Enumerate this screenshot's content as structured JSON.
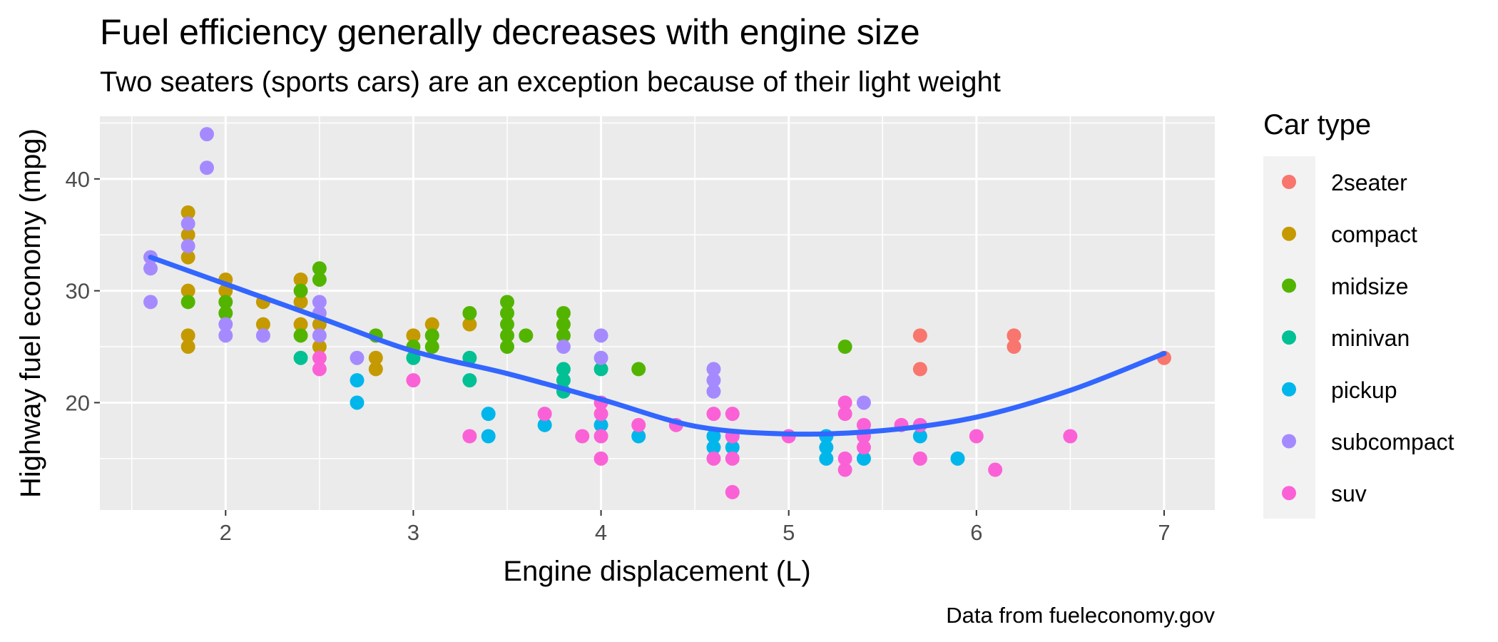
{
  "chart_data": {
    "type": "scatter",
    "title": "Fuel efficiency generally decreases with engine size",
    "subtitle": "Two seaters (sports cars) are an exception because of their light weight",
    "xlabel": "Engine displacement (L)",
    "ylabel": "Highway fuel economy (mpg)",
    "caption": "Data from fueleconomy.gov",
    "xlim": [
      1.33,
      7.27
    ],
    "ylim": [
      10.4,
      45.6
    ],
    "x_ticks": [
      "2",
      "3",
      "4",
      "5",
      "6",
      "7"
    ],
    "y_ticks": [
      "20",
      "30",
      "40"
    ],
    "x_tick_values": [
      2,
      3,
      4,
      5,
      6,
      7
    ],
    "y_tick_values": [
      20,
      30,
      40
    ],
    "grid": true,
    "legend_title": "Car type",
    "legend_position": "right",
    "series": [
      {
        "name": "2seater",
        "color": "#F8766D",
        "points": [
          [
            5.7,
            26
          ],
          [
            5.7,
            23
          ],
          [
            6.2,
            26
          ],
          [
            6.2,
            25
          ],
          [
            7.0,
            24
          ]
        ]
      },
      {
        "name": "compact",
        "color": "#C49A00",
        "points": [
          [
            1.8,
            37
          ],
          [
            1.8,
            35
          ],
          [
            1.8,
            33
          ],
          [
            1.8,
            30
          ],
          [
            1.8,
            26
          ],
          [
            1.8,
            25
          ],
          [
            2.0,
            31
          ],
          [
            2.0,
            30
          ],
          [
            2.2,
            29
          ],
          [
            2.2,
            27
          ],
          [
            2.4,
            31
          ],
          [
            2.4,
            29
          ],
          [
            2.4,
            27
          ],
          [
            2.5,
            27
          ],
          [
            2.5,
            25
          ],
          [
            2.8,
            24
          ],
          [
            2.8,
            23
          ],
          [
            3.0,
            26
          ],
          [
            3.1,
            27
          ],
          [
            3.3,
            27
          ]
        ]
      },
      {
        "name": "midsize",
        "color": "#53B400",
        "points": [
          [
            1.8,
            29
          ],
          [
            2.0,
            29
          ],
          [
            2.0,
            28
          ],
          [
            2.4,
            30
          ],
          [
            2.4,
            26
          ],
          [
            2.5,
            32
          ],
          [
            2.5,
            31
          ],
          [
            2.8,
            26
          ],
          [
            3.0,
            25
          ],
          [
            3.1,
            26
          ],
          [
            3.1,
            25
          ],
          [
            3.3,
            28
          ],
          [
            3.5,
            29
          ],
          [
            3.5,
            28
          ],
          [
            3.5,
            27
          ],
          [
            3.5,
            26
          ],
          [
            3.5,
            25
          ],
          [
            3.6,
            26
          ],
          [
            3.8,
            28
          ],
          [
            3.8,
            27
          ],
          [
            3.8,
            26
          ],
          [
            4.2,
            23
          ],
          [
            5.3,
            25
          ]
        ]
      },
      {
        "name": "minivan",
        "color": "#00C094",
        "points": [
          [
            2.4,
            24
          ],
          [
            3.0,
            24
          ],
          [
            3.3,
            24
          ],
          [
            3.3,
            22
          ],
          [
            3.8,
            23
          ],
          [
            3.8,
            22
          ],
          [
            3.8,
            21
          ],
          [
            4.0,
            23
          ]
        ]
      },
      {
        "name": "pickup",
        "color": "#00B6EB",
        "points": [
          [
            2.7,
            22
          ],
          [
            2.7,
            20
          ],
          [
            3.4,
            19
          ],
          [
            3.4,
            17
          ],
          [
            3.7,
            18
          ],
          [
            4.0,
            18
          ],
          [
            4.2,
            17
          ],
          [
            4.6,
            17
          ],
          [
            4.6,
            16
          ],
          [
            4.7,
            17
          ],
          [
            4.7,
            16
          ],
          [
            5.2,
            17
          ],
          [
            5.2,
            16
          ],
          [
            5.2,
            15
          ],
          [
            5.4,
            15
          ],
          [
            5.7,
            17
          ],
          [
            5.9,
            15
          ]
        ]
      },
      {
        "name": "subcompact",
        "color": "#A58AFF",
        "points": [
          [
            1.6,
            33
          ],
          [
            1.6,
            32
          ],
          [
            1.6,
            29
          ],
          [
            1.8,
            36
          ],
          [
            1.8,
            34
          ],
          [
            1.9,
            44
          ],
          [
            1.9,
            41
          ],
          [
            2.0,
            27
          ],
          [
            2.0,
            26
          ],
          [
            2.2,
            26
          ],
          [
            2.5,
            29
          ],
          [
            2.5,
            28
          ],
          [
            2.5,
            26
          ],
          [
            2.7,
            24
          ],
          [
            3.8,
            25
          ],
          [
            4.0,
            26
          ],
          [
            4.0,
            24
          ],
          [
            4.6,
            23
          ],
          [
            4.6,
            22
          ],
          [
            4.6,
            21
          ],
          [
            5.4,
            20
          ]
        ]
      },
      {
        "name": "suv",
        "color": "#FB61D7",
        "points": [
          [
            2.5,
            24
          ],
          [
            2.5,
            23
          ],
          [
            3.0,
            22
          ],
          [
            3.3,
            17
          ],
          [
            3.7,
            19
          ],
          [
            3.9,
            17
          ],
          [
            4.0,
            20
          ],
          [
            4.0,
            19
          ],
          [
            4.0,
            17
          ],
          [
            4.0,
            15
          ],
          [
            4.2,
            18
          ],
          [
            4.4,
            18
          ],
          [
            4.6,
            19
          ],
          [
            4.6,
            15
          ],
          [
            4.7,
            19
          ],
          [
            4.7,
            17
          ],
          [
            4.7,
            15
          ],
          [
            4.7,
            12
          ],
          [
            5.0,
            17
          ],
          [
            5.3,
            20
          ],
          [
            5.3,
            19
          ],
          [
            5.3,
            15
          ],
          [
            5.3,
            14
          ],
          [
            5.4,
            18
          ],
          [
            5.4,
            17
          ],
          [
            5.4,
            16
          ],
          [
            5.6,
            18
          ],
          [
            5.7,
            18
          ],
          [
            5.7,
            15
          ],
          [
            6.0,
            17
          ],
          [
            6.1,
            14
          ],
          [
            6.5,
            17
          ]
        ]
      }
    ],
    "smooth_line": {
      "color": "#3366FF",
      "points": [
        [
          1.6,
          33.0
        ],
        [
          2.0,
          30.6
        ],
        [
          2.5,
          27.6
        ],
        [
          3.0,
          24.6
        ],
        [
          3.5,
          22.6
        ],
        [
          4.0,
          20.3
        ],
        [
          4.5,
          17.9
        ],
        [
          5.0,
          17.2
        ],
        [
          5.5,
          17.5
        ],
        [
          6.0,
          18.7
        ],
        [
          6.5,
          21.1
        ],
        [
          7.0,
          24.4
        ]
      ]
    }
  }
}
